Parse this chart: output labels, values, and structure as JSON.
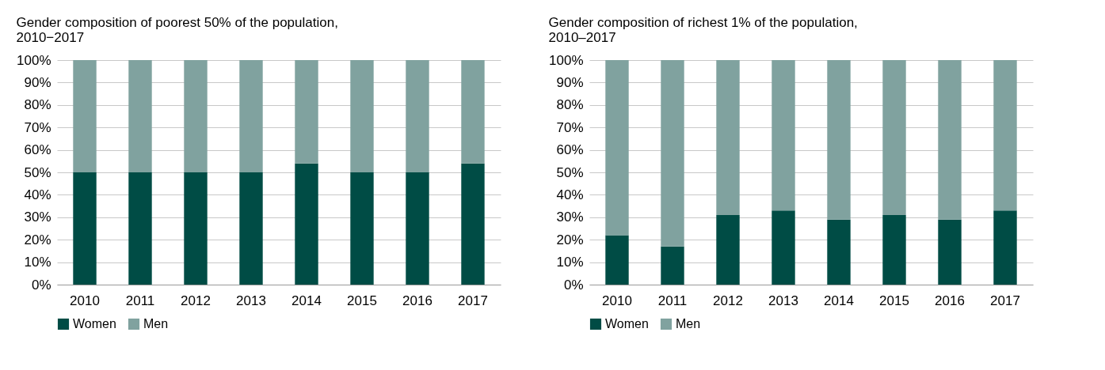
{
  "chart_data": [
    {
      "type": "bar",
      "title": "Gender composition of poorest 50% of the population,\n2010−2017",
      "categories": [
        "2010",
        "2011",
        "2012",
        "2013",
        "2014",
        "2015",
        "2016",
        "2017"
      ],
      "stacked": true,
      "series": [
        {
          "name": "Women",
          "color": "#004c45",
          "values": [
            50,
            50,
            50,
            50,
            54,
            50,
            50,
            54
          ]
        },
        {
          "name": "Men",
          "color": "#80a29f",
          "values": [
            50,
            50,
            50,
            50,
            46,
            50,
            50,
            46
          ]
        }
      ],
      "ylim": [
        0,
        100
      ],
      "yticks": [
        {
          "value": 0,
          "label": "0%"
        },
        {
          "value": 10,
          "label": "10%"
        },
        {
          "value": 20,
          "label": "20%"
        },
        {
          "value": 30,
          "label": "30%"
        },
        {
          "value": 40,
          "label": "40%"
        },
        {
          "value": 50,
          "label": "50%"
        },
        {
          "value": 60,
          "label": "60%"
        },
        {
          "value": 70,
          "label": "70%"
        },
        {
          "value": 80,
          "label": "80%"
        },
        {
          "value": 90,
          "label": "90%"
        },
        {
          "value": 100,
          "label": "100%"
        }
      ],
      "grid": "y",
      "legend": "bottom"
    },
    {
      "type": "bar",
      "title": "Gender composition of richest 1% of the population,\n2010–2017",
      "categories": [
        "2010",
        "2011",
        "2012",
        "2013",
        "2014",
        "2015",
        "2016",
        "2017"
      ],
      "stacked": true,
      "series": [
        {
          "name": "Women",
          "color": "#004c45",
          "values": [
            22,
            17,
            31,
            33,
            29,
            31,
            29,
            33
          ]
        },
        {
          "name": "Men",
          "color": "#80a29f",
          "values": [
            78,
            83,
            69,
            67,
            71,
            69,
            71,
            67
          ]
        }
      ],
      "ylim": [
        0,
        100
      ],
      "yticks": [
        {
          "value": 0,
          "label": "0%"
        },
        {
          "value": 10,
          "label": "10%"
        },
        {
          "value": 20,
          "label": "20%"
        },
        {
          "value": 30,
          "label": "30%"
        },
        {
          "value": 40,
          "label": "40%"
        },
        {
          "value": 50,
          "label": "50%"
        },
        {
          "value": 60,
          "label": "60%"
        },
        {
          "value": 70,
          "label": "70%"
        },
        {
          "value": 80,
          "label": "80%"
        },
        {
          "value": 90,
          "label": "90%"
        },
        {
          "value": 100,
          "label": "100%"
        }
      ],
      "grid": "y",
      "legend": "bottom"
    }
  ]
}
